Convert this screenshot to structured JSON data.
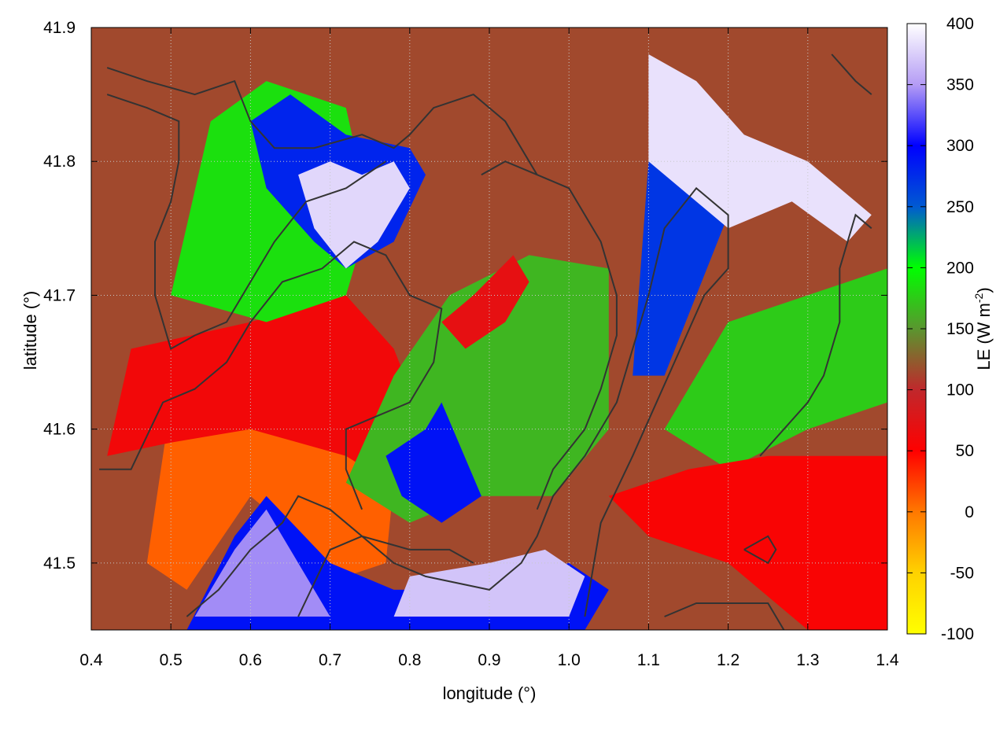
{
  "chart_data": {
    "type": "heatmap",
    "xlabel": "longitude (°)",
    "ylabel": "latitude (°)",
    "xlim": [
      0.4,
      1.4
    ],
    "ylim": [
      41.45,
      41.9
    ],
    "x_ticks": [
      0.4,
      0.5,
      0.6,
      0.7,
      0.8,
      0.9,
      1.0,
      1.1,
      1.2,
      1.3,
      1.4
    ],
    "x_tick_labels": [
      "0.4",
      "0.5",
      "0.6",
      "0.7",
      "0.8",
      "0.9",
      "1.0",
      "1.1",
      "1.2",
      "1.3",
      "1.4"
    ],
    "y_ticks": [
      41.5,
      41.6,
      41.7,
      41.8,
      41.9
    ],
    "y_tick_labels": [
      "41.5",
      "41.6",
      "41.7",
      "41.8",
      "41.9"
    ],
    "grid": true,
    "colorbar": {
      "label_main": "LE (W m",
      "label_exp": "-2",
      "label_close": ")",
      "min": -100,
      "max": 400,
      "ticks": [
        -100,
        -50,
        0,
        50,
        100,
        150,
        200,
        250,
        300,
        350,
        400
      ],
      "tick_labels": [
        "-100",
        "-50",
        "0",
        "50",
        "100",
        "150",
        "200",
        "250",
        "300",
        "350",
        "400"
      ],
      "colors": [
        {
          "value": -100,
          "color": "#ffff00"
        },
        {
          "value": -50,
          "color": "#ffd200"
        },
        {
          "value": 0,
          "color": "#ff7800"
        },
        {
          "value": 50,
          "color": "#ff0000"
        },
        {
          "value": 100,
          "color": "#c0282c"
        },
        {
          "value": 150,
          "color": "#5a962f"
        },
        {
          "value": 200,
          "color": "#00ff00"
        },
        {
          "value": 250,
          "color": "#005ad2"
        },
        {
          "value": 300,
          "color": "#0000ff"
        },
        {
          "value": 350,
          "color": "#b49cf5"
        },
        {
          "value": 400,
          "color": "#ffffff"
        }
      ]
    },
    "field_regions": [
      {
        "name": "background",
        "le": 115,
        "poly": [
          [
            0.4,
            41.45
          ],
          [
            1.4,
            41.45
          ],
          [
            1.4,
            41.9
          ],
          [
            0.4,
            41.9
          ]
        ]
      },
      {
        "name": "southwest-low",
        "le": 10,
        "poly": [
          [
            0.47,
            41.5
          ],
          [
            0.5,
            41.62
          ],
          [
            0.6,
            41.63
          ],
          [
            0.7,
            41.67
          ],
          [
            0.73,
            41.6
          ],
          [
            0.78,
            41.56
          ],
          [
            0.77,
            41.5
          ],
          [
            0.72,
            41.49
          ],
          [
            0.6,
            41.55
          ],
          [
            0.52,
            41.48
          ]
        ]
      },
      {
        "name": "west-red-band",
        "le": 60,
        "poly": [
          [
            0.42,
            41.58
          ],
          [
            0.45,
            41.66
          ],
          [
            0.6,
            41.68
          ],
          [
            0.72,
            41.7
          ],
          [
            0.78,
            41.66
          ],
          [
            0.82,
            41.6
          ],
          [
            0.8,
            41.55
          ],
          [
            0.72,
            41.58
          ],
          [
            0.6,
            41.6
          ],
          [
            0.5,
            41.59
          ]
        ]
      },
      {
        "name": "northwest-green",
        "le": 185,
        "poly": [
          [
            0.5,
            41.7
          ],
          [
            0.55,
            41.83
          ],
          [
            0.62,
            41.86
          ],
          [
            0.72,
            41.84
          ],
          [
            0.75,
            41.76
          ],
          [
            0.72,
            41.7
          ],
          [
            0.62,
            41.68
          ]
        ]
      },
      {
        "name": "northwest-blue",
        "le": 280,
        "poly": [
          [
            0.6,
            41.83
          ],
          [
            0.65,
            41.85
          ],
          [
            0.72,
            41.82
          ],
          [
            0.8,
            41.81
          ],
          [
            0.82,
            41.79
          ],
          [
            0.78,
            41.74
          ],
          [
            0.72,
            41.72
          ],
          [
            0.68,
            41.74
          ],
          [
            0.62,
            41.78
          ]
        ]
      },
      {
        "name": "northwest-white",
        "le": 380,
        "poly": [
          [
            0.66,
            41.79
          ],
          [
            0.7,
            41.8
          ],
          [
            0.74,
            41.79
          ],
          [
            0.78,
            41.8
          ],
          [
            0.8,
            41.78
          ],
          [
            0.76,
            41.74
          ],
          [
            0.72,
            41.72
          ],
          [
            0.68,
            41.75
          ]
        ]
      },
      {
        "name": "central-green",
        "le": 165,
        "poly": [
          [
            0.72,
            41.56
          ],
          [
            0.78,
            41.64
          ],
          [
            0.85,
            41.7
          ],
          [
            0.95,
            41.73
          ],
          [
            1.05,
            41.72
          ],
          [
            1.05,
            41.6
          ],
          [
            0.98,
            41.55
          ],
          [
            0.88,
            41.55
          ],
          [
            0.8,
            41.53
          ]
        ]
      },
      {
        "name": "central-red",
        "le": 70,
        "poly": [
          [
            0.84,
            41.68
          ],
          [
            0.88,
            41.7
          ],
          [
            0.93,
            41.73
          ],
          [
            0.95,
            41.71
          ],
          [
            0.92,
            41.68
          ],
          [
            0.87,
            41.66
          ]
        ]
      },
      {
        "name": "central-blue",
        "le": 290,
        "poly": [
          [
            0.77,
            41.58
          ],
          [
            0.82,
            41.6
          ],
          [
            0.84,
            41.62
          ],
          [
            0.89,
            41.55
          ],
          [
            0.84,
            41.53
          ],
          [
            0.79,
            41.55
          ]
        ]
      },
      {
        "name": "northeast-blue",
        "le": 270,
        "poly": [
          [
            1.08,
            41.64
          ],
          [
            1.1,
            41.8
          ],
          [
            1.18,
            41.8
          ],
          [
            1.2,
            41.76
          ],
          [
            1.16,
            41.7
          ],
          [
            1.12,
            41.64
          ]
        ]
      },
      {
        "name": "northeast-white",
        "le": 385,
        "poly": [
          [
            1.1,
            41.8
          ],
          [
            1.1,
            41.88
          ],
          [
            1.16,
            41.86
          ],
          [
            1.22,
            41.82
          ],
          [
            1.3,
            41.8
          ],
          [
            1.38,
            41.76
          ],
          [
            1.35,
            41.74
          ],
          [
            1.28,
            41.77
          ],
          [
            1.2,
            41.75
          ]
        ]
      },
      {
        "name": "east-green",
        "le": 175,
        "poly": [
          [
            1.12,
            41.6
          ],
          [
            1.2,
            41.68
          ],
          [
            1.3,
            41.7
          ],
          [
            1.4,
            41.72
          ],
          [
            1.4,
            41.62
          ],
          [
            1.3,
            41.6
          ],
          [
            1.2,
            41.57
          ]
        ]
      },
      {
        "name": "southeast-red",
        "le": 55,
        "poly": [
          [
            1.05,
            41.55
          ],
          [
            1.15,
            41.57
          ],
          [
            1.25,
            41.58
          ],
          [
            1.4,
            41.58
          ],
          [
            1.4,
            41.45
          ],
          [
            1.3,
            41.45
          ],
          [
            1.2,
            41.5
          ],
          [
            1.1,
            41.52
          ]
        ]
      },
      {
        "name": "south-blue",
        "le": 290,
        "poly": [
          [
            0.52,
            41.45
          ],
          [
            0.58,
            41.52
          ],
          [
            0.62,
            41.55
          ],
          [
            0.7,
            41.5
          ],
          [
            0.78,
            41.48
          ],
          [
            0.9,
            41.48
          ],
          [
            1.0,
            41.5
          ],
          [
            1.05,
            41.48
          ],
          [
            1.02,
            41.45
          ]
        ]
      },
      {
        "name": "south-white",
        "le": 370,
        "poly": [
          [
            0.78,
            41.46
          ],
          [
            0.8,
            41.49
          ],
          [
            0.9,
            41.5
          ],
          [
            0.97,
            41.51
          ],
          [
            1.02,
            41.49
          ],
          [
            1.0,
            41.46
          ],
          [
            0.9,
            41.46
          ]
        ]
      },
      {
        "name": "southwest-lavender",
        "le": 345,
        "poly": [
          [
            0.53,
            41.46
          ],
          [
            0.58,
            41.51
          ],
          [
            0.62,
            41.54
          ],
          [
            0.66,
            41.5
          ],
          [
            0.7,
            41.46
          ]
        ]
      }
    ],
    "contours": [
      [
        [
          0.42,
          41.87
        ],
        [
          0.47,
          41.86
        ],
        [
          0.53,
          41.85
        ],
        [
          0.58,
          41.86
        ],
        [
          0.6,
          41.83
        ],
        [
          0.63,
          41.81
        ],
        [
          0.68,
          41.81
        ],
        [
          0.74,
          41.82
        ],
        [
          0.78,
          41.81
        ],
        [
          0.8,
          41.82
        ],
        [
          0.83,
          41.84
        ],
        [
          0.88,
          41.85
        ],
        [
          0.92,
          41.83
        ],
        [
          0.96,
          41.79
        ]
      ],
      [
        [
          0.42,
          41.85
        ],
        [
          0.47,
          41.84
        ],
        [
          0.51,
          41.83
        ],
        [
          0.51,
          41.8
        ],
        [
          0.5,
          41.77
        ],
        [
          0.48,
          41.74
        ],
        [
          0.48,
          41.7
        ],
        [
          0.5,
          41.66
        ],
        [
          0.53,
          41.67
        ],
        [
          0.57,
          41.68
        ],
        [
          0.6,
          41.71
        ],
        [
          0.63,
          41.74
        ],
        [
          0.67,
          41.77
        ],
        [
          0.72,
          41.78
        ],
        [
          0.77,
          41.8
        ]
      ],
      [
        [
          0.41,
          41.57
        ],
        [
          0.45,
          41.57
        ],
        [
          0.49,
          41.62
        ],
        [
          0.53,
          41.63
        ],
        [
          0.57,
          41.65
        ],
        [
          0.6,
          41.68
        ],
        [
          0.64,
          41.71
        ],
        [
          0.69,
          41.72
        ],
        [
          0.73,
          41.74
        ],
        [
          0.77,
          41.73
        ],
        [
          0.8,
          41.7
        ],
        [
          0.84,
          41.69
        ],
        [
          0.83,
          41.65
        ],
        [
          0.8,
          41.62
        ],
        [
          0.76,
          41.61
        ],
        [
          0.72,
          41.6
        ],
        [
          0.72,
          41.57
        ],
        [
          0.74,
          41.54
        ]
      ],
      [
        [
          0.52,
          41.46
        ],
        [
          0.56,
          41.48
        ],
        [
          0.6,
          41.51
        ],
        [
          0.64,
          41.53
        ],
        [
          0.66,
          41.55
        ],
        [
          0.7,
          41.54
        ],
        [
          0.74,
          41.52
        ],
        [
          0.8,
          41.51
        ],
        [
          0.85,
          41.51
        ],
        [
          0.88,
          41.5
        ]
      ],
      [
        [
          0.66,
          41.46
        ],
        [
          0.7,
          41.51
        ],
        [
          0.74,
          41.52
        ],
        [
          0.78,
          41.5
        ],
        [
          0.82,
          41.49
        ],
        [
          0.9,
          41.48
        ],
        [
          0.94,
          41.5
        ],
        [
          0.96,
          41.52
        ],
        [
          0.98,
          41.55
        ],
        [
          1.02,
          41.58
        ],
        [
          1.06,
          41.62
        ],
        [
          1.08,
          41.66
        ],
        [
          1.1,
          41.7
        ],
        [
          1.12,
          41.75
        ],
        [
          1.16,
          41.78
        ],
        [
          1.2,
          41.76
        ],
        [
          1.2,
          41.72
        ],
        [
          1.17,
          41.7
        ],
        [
          1.14,
          41.66
        ],
        [
          1.11,
          41.62
        ],
        [
          1.08,
          41.58
        ],
        [
          1.04,
          41.53
        ],
        [
          1.02,
          41.46
        ]
      ],
      [
        [
          0.89,
          41.79
        ],
        [
          0.92,
          41.8
        ],
        [
          0.96,
          41.79
        ],
        [
          1.0,
          41.78
        ],
        [
          1.04,
          41.74
        ],
        [
          1.06,
          41.7
        ],
        [
          1.06,
          41.67
        ],
        [
          1.04,
          41.63
        ],
        [
          1.02,
          41.6
        ],
        [
          0.98,
          41.57
        ],
        [
          0.96,
          41.54
        ]
      ],
      [
        [
          1.12,
          41.46
        ],
        [
          1.16,
          41.47
        ],
        [
          1.2,
          41.47
        ],
        [
          1.25,
          41.47
        ],
        [
          1.27,
          41.45
        ]
      ],
      [
        [
          1.22,
          41.51
        ],
        [
          1.25,
          41.52
        ],
        [
          1.26,
          41.51
        ],
        [
          1.25,
          41.5
        ],
        [
          1.22,
          41.51
        ]
      ],
      [
        [
          1.24,
          41.58
        ],
        [
          1.3,
          41.62
        ],
        [
          1.32,
          41.64
        ],
        [
          1.34,
          41.68
        ],
        [
          1.34,
          41.72
        ],
        [
          1.36,
          41.76
        ],
        [
          1.38,
          41.75
        ]
      ],
      [
        [
          1.33,
          41.88
        ],
        [
          1.36,
          41.86
        ],
        [
          1.38,
          41.85
        ]
      ]
    ]
  }
}
